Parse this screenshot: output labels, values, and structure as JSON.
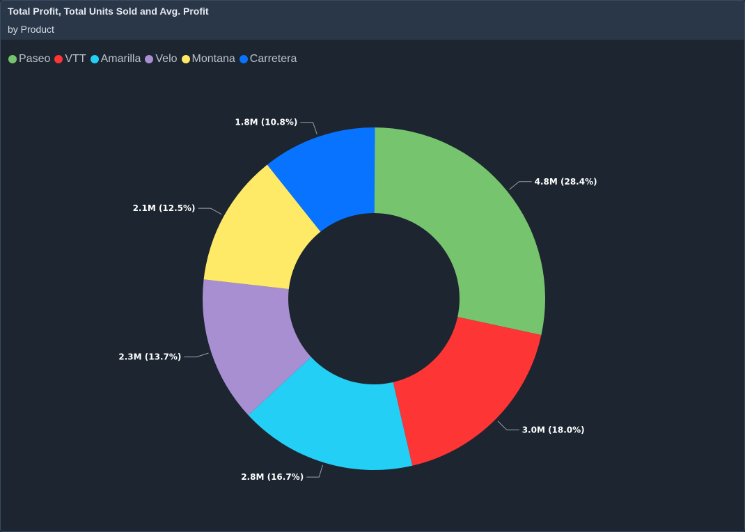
{
  "chart_data": {
    "type": "pie",
    "donut": true,
    "title": "Total Profit, Total Units Sold and Avg. Profit",
    "subtitle": "by Product",
    "legend_position": "top-left",
    "categories": [
      "Paseo",
      "VTT",
      "Amarilla",
      "Velo",
      "Montana",
      "Carretera"
    ],
    "values": [
      4.8,
      3.0,
      2.8,
      2.3,
      2.1,
      1.8
    ],
    "percents": [
      28.4,
      18.0,
      16.7,
      13.7,
      12.5,
      10.8
    ],
    "labels": [
      "4.8M (28.4%)",
      "3.0M (18.0%)",
      "2.8M (16.7%)",
      "2.3M (13.7%)",
      "2.1M (12.5%)",
      "1.8M (10.8%)"
    ],
    "colors": [
      "#77c46e",
      "#fd3535",
      "#23cff4",
      "#a78fd2",
      "#ffea67",
      "#0873ff"
    ]
  }
}
